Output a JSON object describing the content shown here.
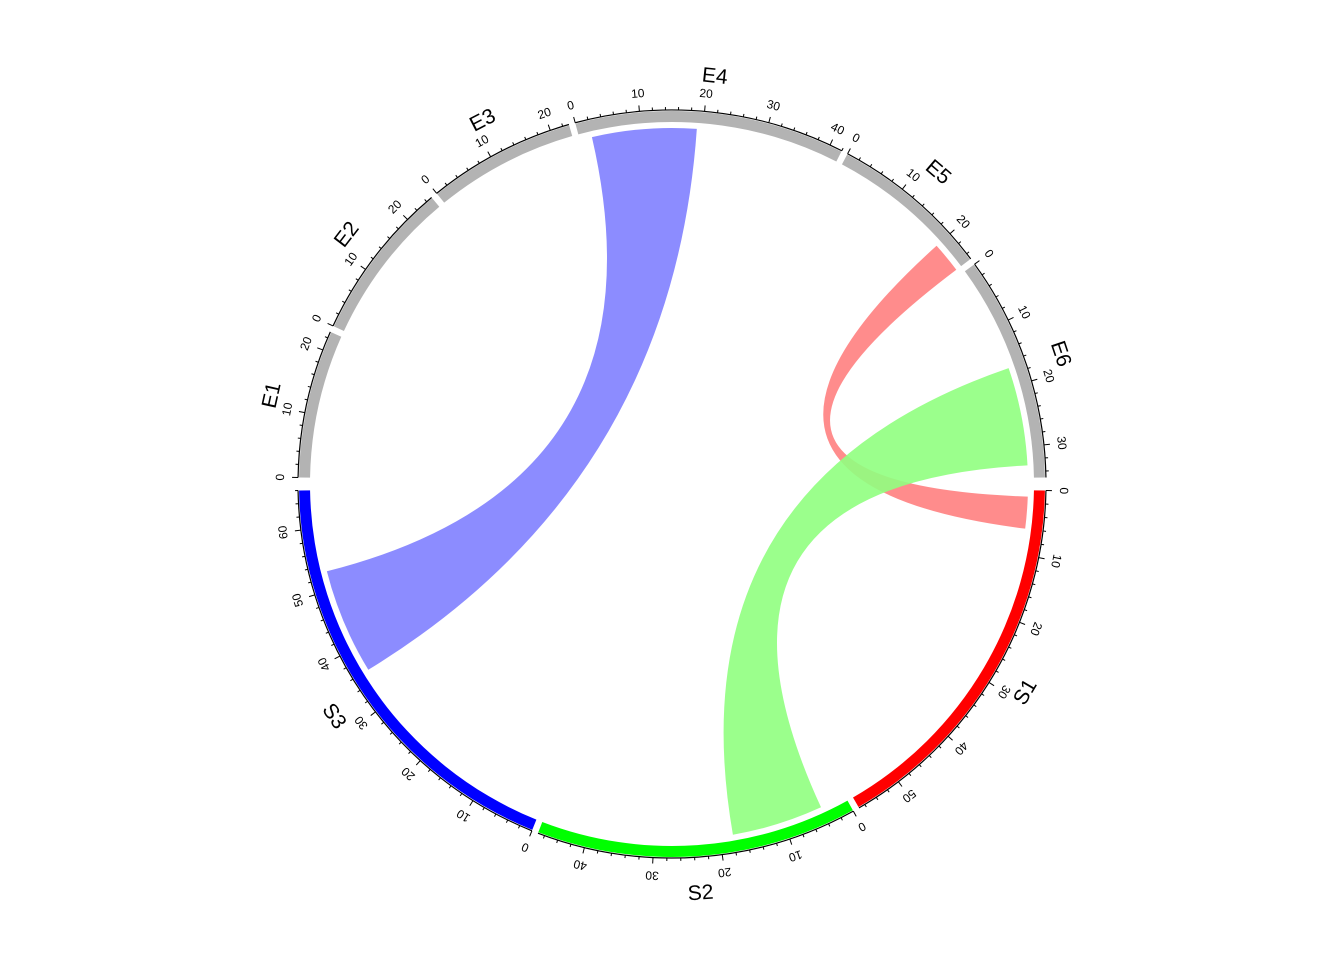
{
  "chart_data": {
    "type": "chord",
    "sectors": [
      {
        "name": "S1",
        "length": 57,
        "start_deg": 1,
        "end_deg": 60,
        "color": "#ff0000",
        "tick_labels": [
          "0",
          "10",
          "20",
          "30",
          "40",
          "50"
        ]
      },
      {
        "name": "S2",
        "length": 47,
        "start_deg": 61,
        "end_deg": 111,
        "color": "#00ff00",
        "tick_labels": [
          "0",
          "10",
          "20",
          "30",
          "40"
        ]
      },
      {
        "name": "S3",
        "length": 66,
        "start_deg": 112,
        "end_deg": 179,
        "color": "#0000ff",
        "tick_labels": [
          "0",
          "10",
          "20",
          "30",
          "40",
          "50",
          "60"
        ]
      },
      {
        "name": "E1",
        "length": 23,
        "start_deg": 181,
        "end_deg": 204,
        "color": "#b3b3b3",
        "tick_labels": [
          "0",
          "10",
          "20"
        ]
      },
      {
        "name": "E2",
        "length": 25,
        "start_deg": 205,
        "end_deg": 230,
        "color": "#b3b3b3",
        "tick_labels": [
          "0",
          "10",
          "20"
        ]
      },
      {
        "name": "E3",
        "length": 23,
        "start_deg": 231,
        "end_deg": 254,
        "color": "#b3b3b3",
        "tick_labels": [
          "0",
          "10",
          "20"
        ]
      },
      {
        "name": "E4",
        "length": 42,
        "start_deg": 255,
        "end_deg": 297,
        "color": "#b3b3b3",
        "tick_labels": [
          "0",
          "10",
          "20",
          "30",
          "40"
        ]
      },
      {
        "name": "E5",
        "length": 25,
        "start_deg": 298,
        "end_deg": 323,
        "color": "#b3b3b3",
        "tick_labels": [
          "0",
          "10",
          "20"
        ]
      },
      {
        "name": "E6",
        "length": 35,
        "start_deg": 324,
        "end_deg": 359,
        "color": "#b3b3b3",
        "tick_labels": [
          "0",
          "10",
          "20",
          "30"
        ]
      }
    ],
    "links": [
      {
        "from": "S1",
        "from_range": [
          1,
          6
        ],
        "to": "E5",
        "to_range": [
          20,
          25
        ],
        "color": "#ff8080"
      },
      {
        "from": "S2",
        "from_range": [
          4,
          18
        ],
        "to": "E6",
        "to_range": [
          17,
          33
        ],
        "color": "#90ff80"
      },
      {
        "from": "S3",
        "from_range": [
          36,
          53
        ],
        "to": "E4",
        "to_range": [
          2,
          19
        ],
        "color": "#8080ff"
      }
    ]
  }
}
